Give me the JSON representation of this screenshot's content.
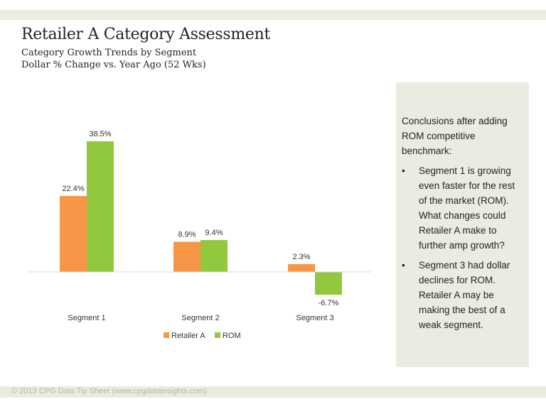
{
  "header": {
    "title": "Retailer A Category Assessment",
    "subtitle_1": "Category Growth Trends by Segment",
    "subtitle_2": "Dollar % Change vs. Year Ago (52 Wks)"
  },
  "chart_data": {
    "type": "bar",
    "categories": [
      "Segment 1",
      "Segment 2",
      "Segment 3"
    ],
    "series": [
      {
        "name": "Retailer A",
        "color": "#f79646",
        "values": [
          22.4,
          8.9,
          2.3
        ],
        "labels": [
          "22.4%",
          "8.9%",
          "2.3%"
        ]
      },
      {
        "name": "ROM",
        "color": "#92c83e",
        "values": [
          38.5,
          9.4,
          -6.7
        ],
        "labels": [
          "38.5%",
          "9.4%",
          "-6.7%"
        ]
      }
    ],
    "legend_position": "bottom",
    "grid": false
  },
  "panel": {
    "intro": "Conclusions after adding ROM competitive benchmark:",
    "bullet_glyph": "•",
    "bullets": [
      "Segment 1 is growing even faster for the rest of the market (ROM). What changes could Retailer A make to further amp growth?",
      "Segment 3 had dollar declines for ROM. Retailer A  may be making the best of a weak segment."
    ]
  },
  "footer": {
    "text": "© 2013 CPG Data Tip Sheet (www.cpgdatainsights.com)"
  }
}
